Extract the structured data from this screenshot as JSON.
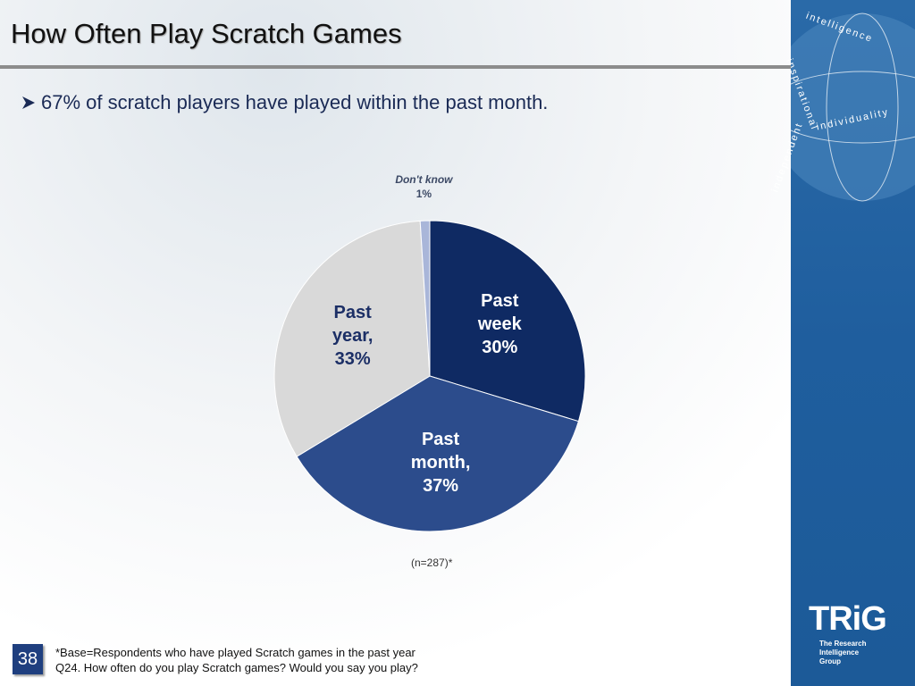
{
  "slide": {
    "title": "How Often Play Scratch Games",
    "bullet": "67% of scratch players have played within the past month.",
    "sample_note": "(n=287)*",
    "footnotes": [
      "*Base=Respondents who have played Scratch games in the past year",
      "Q24.  How often do you play Scratch games?  Would you say you play?"
    ],
    "page_number": "38",
    "globe_words": [
      "intelligence",
      "individuality",
      "inspirational",
      "independent"
    ],
    "logo": {
      "name": "TRiG",
      "tagline": "The Research Intelligence Group"
    }
  },
  "chart_data": {
    "type": "pie",
    "categories": [
      "Past week",
      "Past month,",
      "Past year,",
      "Don't know"
    ],
    "values": [
      30,
      37,
      33,
      1
    ],
    "value_labels": [
      "30%",
      "37%",
      "33%",
      "1%"
    ],
    "colors": [
      "#0f2a63",
      "#2c4c8c",
      "#d9d9d9",
      "#a9b6d9"
    ]
  }
}
